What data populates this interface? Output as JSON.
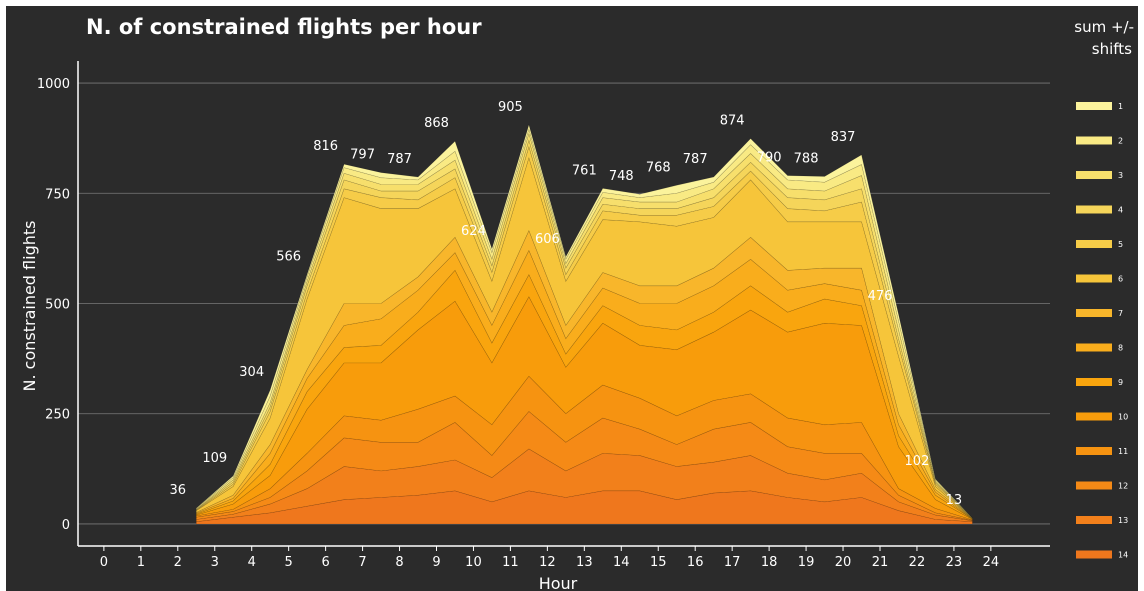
{
  "chart_data": {
    "type": "area",
    "title": "N. of constrained flights per hour",
    "xlabel": "Hour",
    "ylabel": "N. constrained flights",
    "ylim": [
      -50,
      1050
    ],
    "xlim": [
      -0.7,
      25.6
    ],
    "x_ticks": [
      0,
      1,
      2,
      3,
      4,
      5,
      6,
      7,
      8,
      9,
      10,
      11,
      12,
      13,
      14,
      15,
      16,
      17,
      18,
      19,
      20,
      21,
      22,
      23,
      24
    ],
    "y_ticks": [
      0,
      250,
      500,
      750,
      1000
    ],
    "grid": true,
    "legend_title": "sum +/- shifts",
    "legend_position": "right",
    "x": [
      2.5,
      3.5,
      4.5,
      5.5,
      6.5,
      7.5,
      8.5,
      9.5,
      10.5,
      11.5,
      12.5,
      13.5,
      14.5,
      15.5,
      16.5,
      17.5,
      18.5,
      19.5,
      20.5,
      21.5,
      22.5,
      23.5
    ],
    "cumulative_levels": [
      [
        5,
        15,
        25,
        40,
        55,
        60,
        65,
        75,
        50,
        75,
        60,
        75,
        75,
        55,
        70,
        75,
        60,
        50,
        60,
        30,
        10,
        5
      ],
      [
        10,
        22,
        45,
        80,
        130,
        120,
        130,
        145,
        105,
        170,
        120,
        160,
        155,
        130,
        140,
        155,
        115,
        100,
        115,
        50,
        20,
        7
      ],
      [
        15,
        28,
        60,
        120,
        195,
        185,
        185,
        230,
        155,
        255,
        185,
        240,
        215,
        180,
        215,
        230,
        175,
        160,
        160,
        65,
        25,
        8
      ],
      [
        18,
        33,
        80,
        160,
        245,
        235,
        260,
        290,
        225,
        335,
        250,
        315,
        285,
        245,
        280,
        295,
        240,
        225,
        230,
        80,
        35,
        9
      ],
      [
        20,
        45,
        110,
        260,
        365,
        365,
        440,
        505,
        365,
        515,
        355,
        455,
        405,
        395,
        435,
        485,
        435,
        455,
        450,
        175,
        55,
        10
      ],
      [
        22,
        52,
        135,
        300,
        400,
        405,
        480,
        575,
        410,
        565,
        385,
        495,
        450,
        440,
        480,
        540,
        480,
        510,
        495,
        200,
        65,
        11
      ],
      [
        24,
        58,
        160,
        330,
        450,
        465,
        530,
        615,
        450,
        620,
        420,
        535,
        500,
        500,
        540,
        600,
        530,
        545,
        530,
        225,
        72,
        11
      ],
      [
        26,
        65,
        180,
        350,
        500,
        500,
        560,
        650,
        480,
        665,
        450,
        570,
        540,
        540,
        580,
        650,
        575,
        580,
        580,
        250,
        78,
        12
      ],
      [
        30,
        85,
        240,
        510,
        740,
        715,
        715,
        760,
        550,
        830,
        550,
        690,
        685,
        675,
        695,
        780,
        685,
        685,
        685,
        380,
        85,
        12
      ],
      [
        31,
        90,
        255,
        525,
        760,
        740,
        735,
        785,
        570,
        855,
        565,
        710,
        700,
        700,
        720,
        800,
        715,
        710,
        730,
        405,
        90,
        12
      ],
      [
        32,
        95,
        265,
        540,
        780,
        755,
        755,
        805,
        585,
        870,
        580,
        725,
        715,
        715,
        740,
        820,
        740,
        735,
        760,
        420,
        93,
        13
      ],
      [
        33,
        100,
        275,
        550,
        795,
        770,
        770,
        825,
        600,
        885,
        590,
        740,
        730,
        730,
        760,
        840,
        760,
        755,
        790,
        440,
        96,
        13
      ],
      [
        35,
        105,
        290,
        560,
        808,
        785,
        780,
        845,
        615,
        895,
        600,
        752,
        740,
        750,
        775,
        860,
        780,
        775,
        815,
        460,
        100,
        13
      ],
      [
        36,
        109,
        304,
        566,
        816,
        797,
        787,
        868,
        624,
        905,
        606,
        761,
        748,
        768,
        787,
        874,
        790,
        788,
        837,
        476,
        102,
        13
      ]
    ],
    "series": [
      {
        "name": "14",
        "color": "#ef771d"
      },
      {
        "name": "13",
        "color": "#f2801b"
      },
      {
        "name": "12",
        "color": "#f58a16"
      },
      {
        "name": "11",
        "color": "#f69311"
      },
      {
        "name": "10",
        "color": "#f89c0b"
      },
      {
        "name": "9",
        "color": "#f9a50e"
      },
      {
        "name": "8",
        "color": "#f9ad1c"
      },
      {
        "name": "7",
        "color": "#f8b62b"
      },
      {
        "name": "6",
        "color": "#f6c53a"
      },
      {
        "name": "5",
        "color": "#f6cc48"
      },
      {
        "name": "4",
        "color": "#f5d55a"
      },
      {
        "name": "3",
        "color": "#f7df6c"
      },
      {
        "name": "2",
        "color": "#f9ea84"
      },
      {
        "name": "1",
        "color": "#fbf39c"
      }
    ],
    "data_labels": [
      "36",
      "109",
      "304",
      "566",
      "816",
      "797",
      "787",
      "868",
      "624",
      "905",
      "606",
      "761",
      "748",
      "768",
      "787",
      "874",
      "790",
      "788",
      "837",
      "476",
      "102",
      "13"
    ]
  }
}
